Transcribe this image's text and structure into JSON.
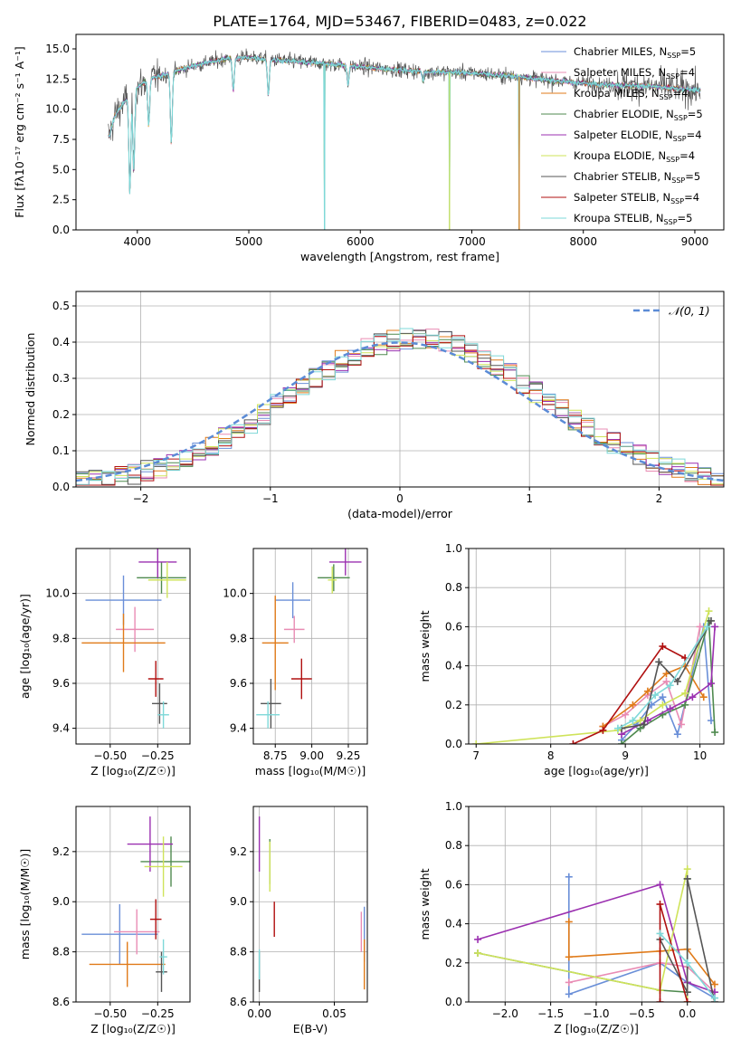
{
  "figure": {
    "title": "PLATE=1764, MJD=53467, FIBERID=0483, z=0.022"
  },
  "models": [
    {
      "name": "Chabrier MILES",
      "nssp": "5",
      "color": "#6a8fd8"
    },
    {
      "name": "Salpeter MILES",
      "nssp": "4",
      "color": "#e98cb4"
    },
    {
      "name": "Kroupa MILES",
      "nssp": "4",
      "color": "#e07b1a"
    },
    {
      "name": "Chabrier ELODIE",
      "nssp": "5",
      "color": "#4f8a4f"
    },
    {
      "name": "Salpeter ELODIE",
      "nssp": "4",
      "color": "#9b30b0"
    },
    {
      "name": "Kroupa ELODIE",
      "nssp": "4",
      "color": "#cfe35a"
    },
    {
      "name": "Chabrier STELIB",
      "nssp": "5",
      "color": "#555555"
    },
    {
      "name": "Salpeter STELIB",
      "nssp": "4",
      "color": "#b01010"
    },
    {
      "name": "Kroupa STELIB",
      "nssp": "5",
      "color": "#7ed8d8"
    }
  ],
  "chart_data": [
    {
      "type": "line",
      "id": "spectrum",
      "xlabel": "wavelength [Angstrom, rest frame]",
      "ylabel": "Flux [fλ10⁻¹⁷ erg cm⁻² s⁻¹ A⁻¹]",
      "xlim": [
        3450,
        9260
      ],
      "ylim": [
        0,
        16.2
      ],
      "xticks": [
        4000,
        5000,
        6000,
        7000,
        8000,
        9000
      ],
      "yticks": [
        0.0,
        2.5,
        5.0,
        7.5,
        10.0,
        12.5,
        15.0
      ],
      "continuum": {
        "x": [
          3750,
          3800,
          3900,
          4000,
          4100,
          4300,
          4500,
          4800,
          5000,
          5200,
          5500,
          5800,
          6000,
          6300,
          6600,
          7000,
          7400,
          7800,
          8200,
          8600,
          9000
        ],
        "y": [
          7.8,
          9.5,
          10.8,
          11.8,
          12.5,
          13.0,
          13.6,
          14.2,
          14.3,
          14.1,
          13.9,
          13.7,
          13.5,
          13.3,
          13.1,
          13.0,
          12.7,
          12.3,
          12.0,
          11.9,
          11.6
        ]
      },
      "dips": [
        {
          "x": 3933,
          "y": 3.0
        },
        {
          "x": 3968,
          "y": 5.0
        },
        {
          "x": 4102,
          "y": 8.6
        },
        {
          "x": 4305,
          "y": 7.2
        },
        {
          "x": 4861,
          "y": 11.5
        },
        {
          "x": 5175,
          "y": 11.2
        },
        {
          "x": 5890,
          "y": 12.0
        },
        {
          "x": 6563,
          "y": 12.4
        }
      ],
      "artifacts": [
        {
          "x": 5680,
          "y": 0.0
        },
        {
          "x": 6800,
          "y": 0.0
        },
        {
          "x": 7425,
          "y": 0.0
        }
      ]
    },
    {
      "type": "histogram",
      "id": "residuals",
      "xlabel": "(data-model)/error",
      "ylabel": "Normed distribution",
      "xlim": [
        -2.5,
        2.5
      ],
      "ylim": [
        0,
        0.54
      ],
      "xticks": [
        -2,
        -1,
        0,
        1,
        2
      ],
      "yticks": [
        0.0,
        0.1,
        0.2,
        0.3,
        0.4,
        0.5
      ],
      "bin_width": 0.1,
      "reference_curve": {
        "label": "𝒩(0, 1)",
        "mean": 0,
        "sigma": 1,
        "color": "#5b8bd6"
      }
    },
    {
      "type": "errorbar",
      "id": "age-vs-Z",
      "xlabel": "Z [log₁₀(Z/Z☉)]",
      "ylabel": "age  [log₁₀(age/yr)]",
      "xlim": [
        -0.68,
        -0.08
      ],
      "ylim": [
        9.33,
        10.2
      ],
      "xticks": [
        -0.5,
        -0.25
      ],
      "yticks": [
        9.4,
        9.6,
        9.8,
        10.0
      ],
      "points": [
        {
          "x": -0.43,
          "xerr": 0.2,
          "y": 9.97,
          "yerr": 0.11,
          "model": 0
        },
        {
          "x": -0.37,
          "xerr": 0.1,
          "y": 9.84,
          "yerr": 0.1,
          "model": 1
        },
        {
          "x": -0.43,
          "xerr": 0.22,
          "y": 9.78,
          "yerr": 0.13,
          "model": 2
        },
        {
          "x": -0.23,
          "xerr": 0.13,
          "y": 10.07,
          "yerr": 0.07,
          "model": 3
        },
        {
          "x": -0.25,
          "xerr": 0.1,
          "y": 10.14,
          "yerr": 0.07,
          "model": 4
        },
        {
          "x": -0.2,
          "xerr": 0.1,
          "y": 10.06,
          "yerr": 0.08,
          "model": 5
        },
        {
          "x": -0.24,
          "xerr": 0.04,
          "y": 9.51,
          "yerr": 0.09,
          "model": 6
        },
        {
          "x": -0.26,
          "xerr": 0.04,
          "y": 9.62,
          "yerr": 0.08,
          "model": 7
        },
        {
          "x": -0.22,
          "xerr": 0.03,
          "y": 9.46,
          "yerr": 0.06,
          "model": 8
        }
      ]
    },
    {
      "type": "errorbar",
      "id": "age-vs-mass",
      "xlabel": "mass [log₁₀(M/M☉)]",
      "ylabel": "",
      "xlim": [
        8.6,
        9.38
      ],
      "ylim": [
        9.33,
        10.2
      ],
      "xticks": [
        8.75,
        9.0,
        9.25
      ],
      "yticks": [
        9.4,
        9.6,
        9.8,
        10.0
      ],
      "points": [
        {
          "x": 8.87,
          "xerr": 0.12,
          "y": 9.97,
          "yerr": 0.08,
          "model": 0
        },
        {
          "x": 8.88,
          "xerr": 0.07,
          "y": 9.84,
          "yerr": 0.06,
          "model": 1
        },
        {
          "x": 8.75,
          "xerr": 0.09,
          "y": 9.78,
          "yerr": 0.21,
          "model": 2
        },
        {
          "x": 9.15,
          "xerr": 0.11,
          "y": 10.07,
          "yerr": 0.06,
          "model": 3
        },
        {
          "x": 9.23,
          "xerr": 0.11,
          "y": 10.14,
          "yerr": 0.06,
          "model": 4
        },
        {
          "x": 9.14,
          "xerr": 0.03,
          "y": 10.06,
          "yerr": 0.06,
          "model": 5
        },
        {
          "x": 8.72,
          "xerr": 0.07,
          "y": 9.51,
          "yerr": 0.11,
          "model": 6
        },
        {
          "x": 8.93,
          "xerr": 0.07,
          "y": 9.62,
          "yerr": 0.09,
          "model": 7
        },
        {
          "x": 8.7,
          "xerr": 0.08,
          "y": 9.46,
          "yerr": 0.06,
          "model": 8
        }
      ]
    },
    {
      "type": "line",
      "id": "weight-vs-age",
      "xlabel": "age  [log₁₀(age/yr)]",
      "ylabel": "mass weight",
      "xlim": [
        6.9,
        10.32
      ],
      "ylim": [
        0,
        1.0
      ],
      "xticks": [
        7,
        8,
        9,
        10
      ],
      "yticks": [
        0.0,
        0.2,
        0.4,
        0.6,
        0.8,
        1.0
      ],
      "series": [
        {
          "model": 0,
          "x": [
            8.95,
            9.15,
            9.35,
            9.5,
            9.7,
            10.05,
            10.15
          ],
          "y": [
            0.02,
            0.1,
            0.2,
            0.24,
            0.05,
            0.6,
            0.12
          ]
        },
        {
          "model": 1,
          "x": [
            8.7,
            9.0,
            9.3,
            9.55,
            9.75,
            10.0
          ],
          "y": [
            0.09,
            0.15,
            0.25,
            0.32,
            0.1,
            0.6
          ]
        },
        {
          "model": 2,
          "x": [
            8.7,
            9.1,
            9.3,
            9.55,
            9.8,
            10.05
          ],
          "y": [
            0.09,
            0.2,
            0.27,
            0.36,
            0.4,
            0.24
          ]
        },
        {
          "model": 3,
          "x": [
            8.95,
            9.2,
            9.5,
            9.8,
            10.12,
            10.2
          ],
          "y": [
            0.0,
            0.08,
            0.15,
            0.2,
            0.63,
            0.06
          ]
        },
        {
          "model": 4,
          "x": [
            8.95,
            9.3,
            9.6,
            9.9,
            10.15,
            10.2
          ],
          "y": [
            0.05,
            0.12,
            0.18,
            0.24,
            0.31,
            0.6
          ]
        },
        {
          "model": 5,
          "x": [
            7.0,
            8.9,
            9.2,
            9.5,
            9.8,
            10.12
          ],
          "y": [
            0.0,
            0.07,
            0.12,
            0.2,
            0.26,
            0.68
          ]
        },
        {
          "model": 6,
          "x": [
            8.95,
            9.25,
            9.45,
            9.7,
            10.15
          ],
          "y": [
            0.08,
            0.1,
            0.42,
            0.32,
            0.63
          ]
        },
        {
          "model": 7,
          "x": [
            8.3,
            8.7,
            9.5,
            9.8
          ],
          "y": [
            0.0,
            0.07,
            0.5,
            0.44
          ]
        },
        {
          "model": 8,
          "x": [
            8.9,
            9.1,
            9.4,
            9.6,
            10.1
          ],
          "y": [
            0.08,
            0.12,
            0.25,
            0.3,
            0.6
          ]
        }
      ]
    },
    {
      "type": "errorbar",
      "id": "mass-vs-Z",
      "xlabel": "Z [log₁₀(Z/Z☉)]",
      "ylabel": "mass [log₁₀(M/M☉)]",
      "xlim": [
        -0.68,
        -0.08
      ],
      "ylim": [
        8.6,
        9.38
      ],
      "xticks": [
        -0.5,
        -0.25
      ],
      "yticks": [
        8.6,
        8.8,
        9.0,
        9.2
      ],
      "points": [
        {
          "x": -0.45,
          "xerr": 0.2,
          "y": 8.87,
          "yerr": 0.12,
          "model": 0
        },
        {
          "x": -0.36,
          "xerr": 0.12,
          "y": 8.88,
          "yerr": 0.09,
          "model": 1
        },
        {
          "x": -0.41,
          "xerr": 0.2,
          "y": 8.75,
          "yerr": 0.09,
          "model": 2
        },
        {
          "x": -0.18,
          "xerr": 0.16,
          "y": 9.16,
          "yerr": 0.1,
          "model": 3
        },
        {
          "x": -0.29,
          "xerr": 0.12,
          "y": 9.23,
          "yerr": 0.11,
          "model": 4
        },
        {
          "x": -0.22,
          "xerr": 0.1,
          "y": 9.14,
          "yerr": 0.12,
          "model": 5
        },
        {
          "x": -0.23,
          "xerr": 0.03,
          "y": 8.72,
          "yerr": 0.08,
          "model": 6
        },
        {
          "x": -0.26,
          "xerr": 0.03,
          "y": 8.93,
          "yerr": 0.08,
          "model": 7
        },
        {
          "x": -0.22,
          "xerr": 0.02,
          "y": 8.78,
          "yerr": 0.07,
          "model": 8
        }
      ]
    },
    {
      "type": "errorbar",
      "id": "mass-vs-ebv",
      "xlabel": "E(B-V)",
      "ylabel": "",
      "xlim": [
        -0.004,
        0.072
      ],
      "ylim": [
        8.6,
        9.38
      ],
      "xticks": [
        0.0,
        0.05
      ],
      "yticks": [
        8.6,
        8.8,
        9.0,
        9.2
      ],
      "points": [
        {
          "x": 0.07,
          "xerr": 0,
          "y": 8.87,
          "yerr": 0.11,
          "model": 0
        },
        {
          "x": 0.068,
          "xerr": 0,
          "y": 8.88,
          "yerr": 0.08,
          "model": 1
        },
        {
          "x": 0.07,
          "xerr": 0,
          "y": 8.75,
          "yerr": 0.1,
          "model": 2
        },
        {
          "x": 0.007,
          "xerr": 0,
          "y": 9.16,
          "yerr": 0.09,
          "model": 3
        },
        {
          "x": 0.0,
          "xerr": 0,
          "y": 9.23,
          "yerr": 0.11,
          "model": 4
        },
        {
          "x": 0.007,
          "xerr": 0,
          "y": 9.14,
          "yerr": 0.1,
          "model": 5
        },
        {
          "x": 0.0,
          "xerr": 0,
          "y": 8.72,
          "yerr": 0.08,
          "model": 6
        },
        {
          "x": 0.01,
          "xerr": 0,
          "y": 8.93,
          "yerr": 0.07,
          "model": 7
        },
        {
          "x": 0.0,
          "xerr": 0,
          "y": 8.75,
          "yerr": 0.06,
          "model": 8
        }
      ]
    },
    {
      "type": "line",
      "id": "weight-vs-Z",
      "xlabel": "Z [log₁₀(Z/Z☉)]",
      "ylabel": "mass weight",
      "xlim": [
        -2.4,
        0.4
      ],
      "ylim": [
        0,
        1.0
      ],
      "xticks": [
        -2.0,
        -1.5,
        -1.0,
        -0.5,
        0.0
      ],
      "yticks": [
        0.0,
        0.2,
        0.4,
        0.6,
        0.8,
        1.0
      ],
      "series": [
        {
          "model": 0,
          "x": [
            -1.3,
            -1.3,
            -0.3,
            0.0,
            0.3
          ],
          "y": [
            0.64,
            0.04,
            0.2,
            0.1,
            0.02
          ]
        },
        {
          "model": 1,
          "x": [
            -1.3,
            -0.3,
            0.0,
            0.3
          ],
          "y": [
            0.1,
            0.2,
            0.18,
            0.05
          ]
        },
        {
          "model": 2,
          "x": [
            -1.3,
            -1.3,
            -0.3,
            0.0,
            0.3
          ],
          "y": [
            0.41,
            0.23,
            0.26,
            0.27,
            0.09
          ]
        },
        {
          "model": 3,
          "x": [
            -2.3,
            -0.3,
            0.0,
            0.0
          ],
          "y": [
            0.25,
            0.06,
            0.05,
            0.63
          ]
        },
        {
          "model": 4,
          "x": [
            -2.3,
            -0.3,
            0.0,
            0.3
          ],
          "y": [
            0.32,
            0.6,
            0.1,
            0.05
          ]
        },
        {
          "model": 5,
          "x": [
            -2.3,
            -0.3,
            0.0,
            0.0
          ],
          "y": [
            0.25,
            0.06,
            0.68,
            0.0
          ]
        },
        {
          "model": 6,
          "x": [
            -0.3,
            0.0,
            0.0,
            0.3
          ],
          "y": [
            0.32,
            0.05,
            0.63,
            0.0
          ]
        },
        {
          "model": 7,
          "x": [
            -0.3,
            -0.3,
            0.0
          ],
          "y": [
            0.0,
            0.5,
            0.0
          ]
        },
        {
          "model": 8,
          "x": [
            -0.3,
            0.0,
            0.3
          ],
          "y": [
            0.35,
            0.2,
            0.02
          ]
        }
      ]
    }
  ]
}
